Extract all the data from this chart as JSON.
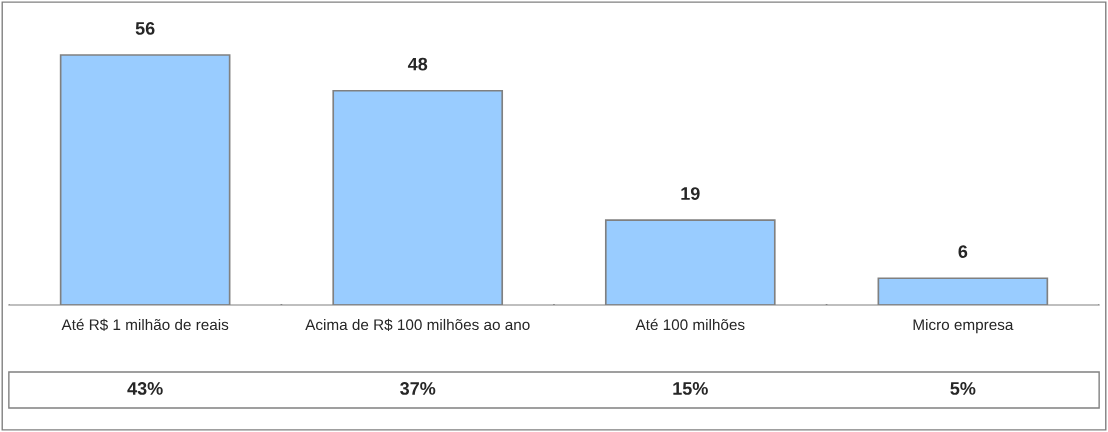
{
  "chart_data": {
    "type": "bar",
    "categories": [
      "Até R$ 1 milhão de reais",
      "Acima de R$ 100 milhões ao ano",
      "Até 100 milhões",
      "Micro empresa"
    ],
    "values": [
      56,
      48,
      19,
      6
    ],
    "color": "#99ccff",
    "data_labels": true,
    "annotations": [
      "43%",
      "37%",
      "15%",
      "5%"
    ]
  }
}
